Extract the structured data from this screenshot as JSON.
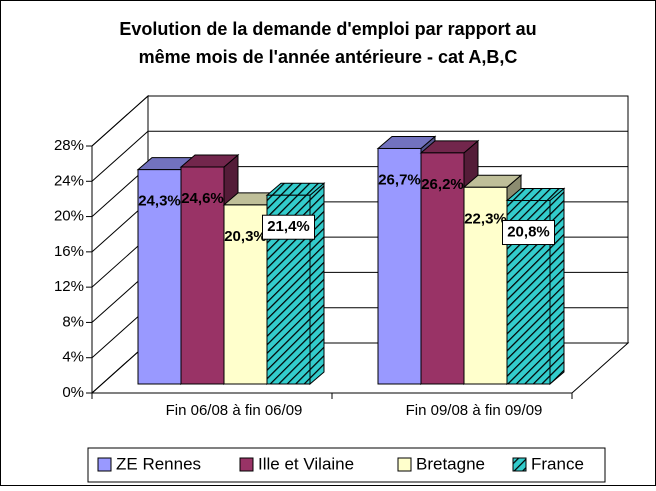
{
  "chart_data": {
    "type": "bar3d",
    "title": [
      "Evolution de la demande d'emploi par rapport au",
      "même mois de l'année antérieure - cat A,B,C"
    ],
    "categories": [
      "Fin 06/08 à fin 06/09",
      "Fin 09/08 à fin 09/09"
    ],
    "series": [
      {
        "name": "ZE Rennes",
        "color": "#9999ff",
        "values": [
          24.3,
          26.7
        ],
        "value_labels": [
          "24,3%",
          "26,7%"
        ]
      },
      {
        "name": "Ille et Vilaine",
        "color": "#993366",
        "values": [
          24.6,
          26.2
        ],
        "value_labels": [
          "24,6%",
          "26,2%"
        ]
      },
      {
        "name": "Bretagne",
        "color": "#ffffcc",
        "values": [
          20.3,
          22.3
        ],
        "value_labels": [
          "20,3%",
          "22,3%"
        ]
      },
      {
        "name": "France",
        "color": "#33cccc",
        "hatched": true,
        "values": [
          21.4,
          20.8
        ],
        "value_labels": [
          "21,4%",
          "20,8%"
        ]
      }
    ],
    "ylim": [
      0,
      28
    ],
    "yticks": [
      {
        "value": 0,
        "label": "0%"
      },
      {
        "value": 4,
        "label": "4%"
      },
      {
        "value": 8,
        "label": "8%"
      },
      {
        "value": 12,
        "label": "12%"
      },
      {
        "value": 16,
        "label": "16%"
      },
      {
        "value": 20,
        "label": "20%"
      },
      {
        "value": 24,
        "label": "24%"
      },
      {
        "value": 28,
        "label": "28%"
      }
    ],
    "grid": true,
    "legend": "bottom"
  }
}
